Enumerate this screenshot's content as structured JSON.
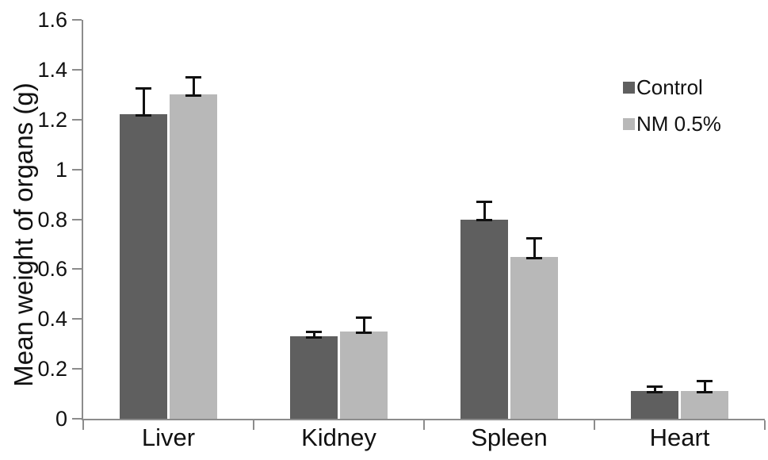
{
  "chart_data": {
    "type": "bar",
    "title": "",
    "xlabel": "",
    "ylabel": "Mean weight of organs (g)",
    "categories": [
      "Liver",
      "Kidney",
      "Spleen",
      "Heart"
    ],
    "series": [
      {
        "name": "Control",
        "color": "#5f5f5f",
        "values": [
          1.22,
          0.33,
          0.8,
          0.11
        ],
        "errors": [
          0.1,
          0.015,
          0.065,
          0.015
        ]
      },
      {
        "name": "NM 0.5%",
        "color": "#b8b8b8",
        "values": [
          1.3,
          0.35,
          0.65,
          0.11
        ],
        "errors": [
          0.065,
          0.05,
          0.07,
          0.035
        ]
      }
    ],
    "ylim": [
      0,
      1.6
    ],
    "ytick_step": 0.2,
    "ytick_labels": [
      "0",
      "0.2",
      "0.4",
      "0.6",
      "0.8",
      "1",
      "1.2",
      "1.4",
      "1.6"
    ],
    "grid": false,
    "error_bars": true,
    "legend_position": "right-top"
  },
  "colors": {
    "axis": "#8c8c8c",
    "error_bar": "#111111",
    "text": "#111111",
    "background": "#ffffff"
  }
}
